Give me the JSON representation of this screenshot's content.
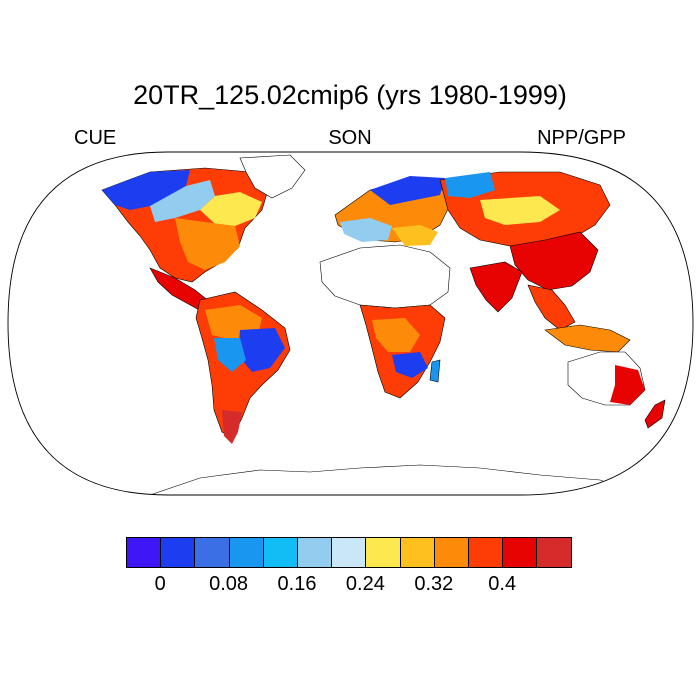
{
  "title": "20TR_125.02cmip6 (yrs 1980-1999)",
  "subtitle_left": "CUE",
  "subtitle_center": "SON",
  "subtitle_right": "NPP/GPP",
  "colorbar": {
    "colors": [
      "#3f16f5",
      "#1c3ef0",
      "#3a6fe6",
      "#1996f0",
      "#12bdf6",
      "#92cdf0",
      "#cae7f8",
      "#fde84f",
      "#fdc01e",
      "#fd8a08",
      "#fd3c06",
      "#e80303",
      "#d52b2b"
    ],
    "ticks": [
      {
        "value": 0,
        "label": "0"
      },
      {
        "value": 0.08,
        "label": "0.08"
      },
      {
        "value": 0.16,
        "label": "0.16"
      },
      {
        "value": 0.24,
        "label": "0.24"
      },
      {
        "value": 0.32,
        "label": "0.32"
      },
      {
        "value": 0.4,
        "label": "0.4"
      }
    ]
  }
}
